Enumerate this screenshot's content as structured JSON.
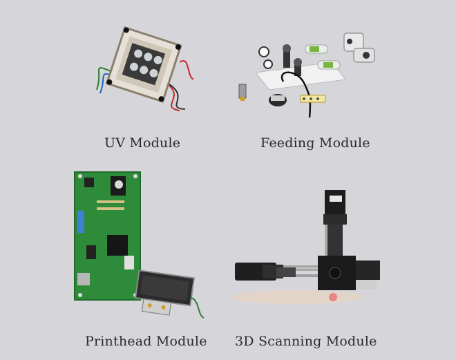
{
  "modules": [
    {
      "label": "UV Module"
    },
    {
      "label": "Feeding Module"
    },
    {
      "label": "Printhead Module"
    },
    {
      "label": "3D Scanning Module"
    }
  ],
  "colors": {
    "background": "#d6d5d9",
    "pcb_green": "#2e8b3a",
    "caption_text": "#2a2a2a"
  }
}
